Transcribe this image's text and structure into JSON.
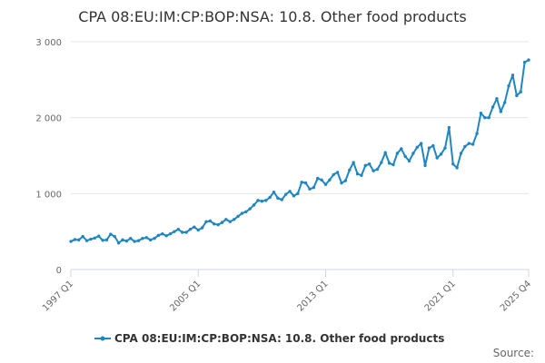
{
  "colors": {
    "series": "#1f86c2",
    "grid": "#e6e6e6",
    "axis": "#ccd6eb"
  },
  "chart_data": {
    "type": "line",
    "title": "CPA 08:EU:IM:CP:BOP:NSA: 10.8. Other food products",
    "xlabel": "",
    "ylabel": "",
    "ylim": [
      0,
      3000
    ],
    "yticks": [
      {
        "value": 0,
        "label": "0"
      },
      {
        "value": 1000,
        "label": "1 000"
      },
      {
        "value": 2000,
        "label": "2 000"
      },
      {
        "value": 3000,
        "label": "3 000"
      }
    ],
    "xticks": [
      {
        "index": 0,
        "label": "1997 Q1"
      },
      {
        "index": 32,
        "label": "2005 Q1"
      },
      {
        "index": 64,
        "label": "2013 Q1"
      },
      {
        "index": 96,
        "label": "2021 Q1"
      },
      {
        "index": 115,
        "label": "2025 Q4"
      }
    ],
    "legend": "bottom-center",
    "source": "Source:",
    "series": [
      {
        "name": "CPA 08:EU:IM:CP:BOP:NSA: 10.8. Other food products",
        "start": "1997 Q1",
        "frequency": "quarterly",
        "values": [
          370,
          395,
          390,
          435,
          380,
          400,
          415,
          440,
          385,
          390,
          465,
          435,
          350,
          390,
          375,
          410,
          370,
          380,
          410,
          420,
          390,
          410,
          450,
          470,
          445,
          470,
          500,
          530,
          490,
          490,
          530,
          560,
          520,
          550,
          630,
          640,
          600,
          590,
          620,
          660,
          630,
          660,
          700,
          740,
          760,
          800,
          850,
          910,
          900,
          910,
          950,
          1020,
          940,
          920,
          990,
          1030,
          970,
          1000,
          1150,
          1140,
          1060,
          1080,
          1200,
          1180,
          1120,
          1180,
          1250,
          1280,
          1140,
          1170,
          1310,
          1410,
          1260,
          1240,
          1370,
          1390,
          1300,
          1320,
          1410,
          1540,
          1400,
          1380,
          1530,
          1590,
          1490,
          1430,
          1530,
          1610,
          1660,
          1370,
          1600,
          1630,
          1470,
          1520,
          1600,
          1870,
          1390,
          1340,
          1530,
          1620,
          1660,
          1650,
          1790,
          2060,
          2000,
          2000,
          2140,
          2250,
          2080,
          2200,
          2420,
          2560,
          2290,
          2340,
          2730,
          2760
        ]
      }
    ]
  }
}
